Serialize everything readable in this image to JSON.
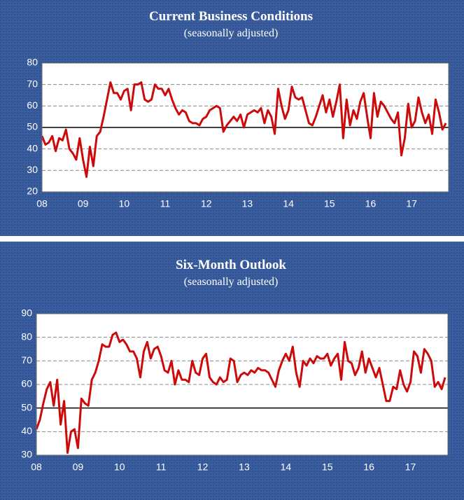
{
  "chart_data": [
    {
      "type": "line",
      "title": "Current  Business Conditions",
      "subtitle": "(seasonally adjusted)",
      "categories": [
        "08",
        null,
        null,
        null,
        null,
        null,
        null,
        null,
        null,
        null,
        null,
        null,
        "09",
        null,
        null,
        null,
        null,
        null,
        null,
        null,
        null,
        null,
        null,
        null,
        "10",
        null,
        null,
        null,
        null,
        null,
        null,
        null,
        null,
        null,
        null,
        null,
        "11",
        null,
        null,
        null,
        null,
        null,
        null,
        null,
        null,
        null,
        null,
        null,
        "12",
        null,
        null,
        null,
        null,
        null,
        null,
        null,
        null,
        null,
        null,
        null,
        "13",
        null,
        null,
        null,
        null,
        null,
        null,
        null,
        null,
        null,
        null,
        null,
        "14",
        null,
        null,
        null,
        null,
        null,
        null,
        null,
        null,
        null,
        null,
        null,
        "15",
        null,
        null,
        null,
        null,
        null,
        null,
        null,
        null,
        null,
        null,
        null,
        "16",
        null,
        null,
        null,
        null,
        null,
        null,
        null,
        null,
        null,
        null,
        null,
        "17",
        null,
        null,
        null,
        null,
        null,
        null,
        null,
        null,
        null,
        null
      ],
      "values": [
        46,
        42,
        43,
        46,
        39,
        45,
        44,
        49,
        40,
        38,
        35,
        45,
        35,
        27,
        41,
        32,
        46,
        48,
        55,
        63,
        71,
        66,
        66,
        63,
        67,
        68,
        58,
        70,
        70,
        71,
        63,
        62,
        63,
        70,
        68,
        68,
        65,
        68,
        63,
        59,
        56,
        58,
        57,
        53,
        52,
        52,
        51,
        54,
        55,
        58,
        59,
        60,
        59,
        48,
        51,
        53,
        55,
        53,
        56,
        50,
        56,
        57,
        58,
        57,
        59,
        52,
        58,
        55,
        47,
        68,
        60,
        54,
        58,
        69,
        64,
        63,
        64,
        58,
        52,
        51,
        55,
        60,
        65,
        57,
        63,
        55,
        62,
        70,
        45,
        63,
        51,
        58,
        54,
        62,
        66,
        55,
        45,
        66,
        55,
        62,
        60,
        57,
        54,
        52,
        57,
        37,
        45,
        61,
        50,
        53,
        64,
        57,
        52,
        56,
        47,
        63,
        57,
        49,
        52
      ],
      "color": "#cc0a0a",
      "ylim": [
        20,
        80
      ],
      "yticks": [
        20,
        30,
        40,
        50,
        60,
        70,
        80
      ],
      "grid": true,
      "reference_line": 50
    },
    {
      "type": "line",
      "title": "Six-Month Outlook",
      "subtitle": "(seasonally adjusted)",
      "categories": [
        "08",
        null,
        null,
        null,
        null,
        null,
        null,
        null,
        null,
        null,
        null,
        null,
        "09",
        null,
        null,
        null,
        null,
        null,
        null,
        null,
        null,
        null,
        null,
        null,
        "10",
        null,
        null,
        null,
        null,
        null,
        null,
        null,
        null,
        null,
        null,
        null,
        "11",
        null,
        null,
        null,
        null,
        null,
        null,
        null,
        null,
        null,
        null,
        null,
        "12",
        null,
        null,
        null,
        null,
        null,
        null,
        null,
        null,
        null,
        null,
        null,
        "13",
        null,
        null,
        null,
        null,
        null,
        null,
        null,
        null,
        null,
        null,
        null,
        "14",
        null,
        null,
        null,
        null,
        null,
        null,
        null,
        null,
        null,
        null,
        null,
        "15",
        null,
        null,
        null,
        null,
        null,
        null,
        null,
        null,
        null,
        null,
        null,
        "16",
        null,
        null,
        null,
        null,
        null,
        null,
        null,
        null,
        null,
        null,
        null,
        "17",
        null,
        null,
        null,
        null,
        null,
        null,
        null,
        null,
        null,
        null
      ],
      "values": [
        41,
        45,
        52,
        58,
        61,
        51,
        62,
        43,
        53,
        31,
        40,
        41,
        33,
        54,
        52,
        51,
        62,
        65,
        70,
        77,
        76,
        76,
        81,
        82,
        78,
        79,
        77,
        74,
        74,
        71,
        63,
        74,
        78,
        71,
        75,
        76,
        72,
        66,
        65,
        70,
        60,
        66,
        62,
        62,
        61,
        70,
        65,
        64,
        71,
        73,
        63,
        61,
        60,
        63,
        61,
        62,
        71,
        70,
        61,
        64,
        65,
        64,
        66,
        65,
        67,
        66,
        66,
        65,
        62,
        59,
        66,
        70,
        73,
        70,
        76,
        65,
        59,
        70,
        68,
        71,
        69,
        72,
        71,
        71,
        73,
        68,
        71,
        73,
        62,
        78,
        70,
        69,
        64,
        67,
        74,
        65,
        71,
        67,
        63,
        67,
        60,
        53,
        53,
        59,
        58,
        66,
        60,
        57,
        61,
        74,
        72,
        65,
        75,
        73,
        70,
        59,
        61,
        58,
        63
      ],
      "color": "#cc0a0a",
      "ylim": [
        30,
        90
      ],
      "yticks": [
        30,
        40,
        50,
        60,
        70,
        80,
        90
      ],
      "grid": true,
      "reference_line": 50
    }
  ]
}
